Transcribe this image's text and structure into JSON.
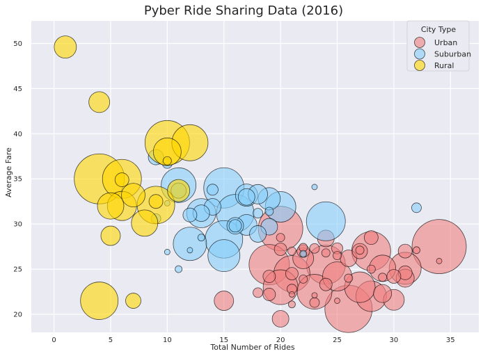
{
  "chart_data": {
    "type": "scatter",
    "title": "Pyber Ride Sharing Data (2016)",
    "xlabel": "Total Number of Rides",
    "ylabel": "Average Fare",
    "xlim": [
      -2,
      37.5
    ],
    "ylim": [
      18,
      52.5
    ],
    "xticks": [
      0,
      5,
      10,
      15,
      20,
      25,
      30,
      35
    ],
    "yticks": [
      20,
      25,
      30,
      35,
      40,
      45,
      50
    ],
    "grid": true,
    "legend": {
      "title": "City Type",
      "placement": "top-right"
    },
    "series": [
      {
        "name": "Urban",
        "color": "#F08080",
        "points": [
          [
            34,
            27.5,
            78
          ],
          [
            26,
            20.6,
            68
          ],
          [
            20,
            29.5,
            64
          ],
          [
            19,
            25.5,
            58
          ],
          [
            28,
            27,
            56
          ],
          [
            24,
            25.5,
            56
          ],
          [
            21,
            24.5,
            52
          ],
          [
            20,
            23,
            50
          ],
          [
            23,
            22.5,
            50
          ],
          [
            31,
            25.1,
            46
          ],
          [
            28,
            22,
            44
          ],
          [
            27,
            23,
            44
          ],
          [
            25,
            24.2,
            42
          ],
          [
            29,
            25.1,
            38
          ],
          [
            22,
            26.2,
            30
          ],
          [
            15,
            21.5,
            28
          ],
          [
            30,
            21.6,
            30
          ],
          [
            29,
            22.3,
            26
          ],
          [
            31,
            24,
            26
          ],
          [
            26,
            26.2,
            24
          ],
          [
            24,
            28.4,
            24
          ],
          [
            27,
            27,
            22
          ],
          [
            20,
            19.5,
            24
          ],
          [
            31,
            27,
            20
          ],
          [
            31,
            24.6,
            20
          ],
          [
            28,
            28.5,
            20
          ],
          [
            30,
            24.2,
            20
          ],
          [
            22,
            27,
            18
          ],
          [
            21,
            24.5,
            18
          ],
          [
            20,
            27.2,
            18
          ],
          [
            19,
            24.2,
            18
          ],
          [
            19,
            22.2,
            18
          ],
          [
            24,
            23.3,
            18
          ],
          [
            25,
            27.3,
            16
          ],
          [
            23,
            27.3,
            14
          ],
          [
            23,
            21.3,
            14
          ],
          [
            18,
            22.4,
            14
          ],
          [
            21,
            22.8,
            14
          ],
          [
            22,
            23.9,
            12
          ],
          [
            25,
            26.5,
            12
          ],
          [
            24,
            26.8,
            12
          ],
          [
            21,
            27,
            12
          ],
          [
            22,
            27.4,
            12
          ],
          [
            27,
            27.1,
            12
          ],
          [
            20,
            28.5,
            12
          ],
          [
            29,
            24.1,
            12
          ],
          [
            28,
            25,
            12
          ],
          [
            26,
            24,
            12
          ],
          [
            21,
            21.1,
            10
          ],
          [
            32,
            27.1,
            10
          ],
          [
            25,
            21.5,
            8
          ],
          [
            21,
            22.2,
            8
          ],
          [
            23,
            22.1,
            8
          ],
          [
            34,
            25.9,
            8
          ],
          [
            22,
            26.7,
            8
          ]
        ]
      },
      {
        "name": "Suburban",
        "color": "#87CEFA",
        "points": [
          [
            15,
            34,
            58
          ],
          [
            24,
            30.3,
            56
          ],
          [
            16,
            31.2,
            54
          ],
          [
            15,
            28.3,
            54
          ],
          [
            11,
            34.3,
            50
          ],
          [
            12,
            27.8,
            48
          ],
          [
            15,
            26.5,
            46
          ],
          [
            20,
            31.9,
            44
          ],
          [
            13,
            31.2,
            42
          ],
          [
            17,
            33.2,
            32
          ],
          [
            19,
            32.8,
            32
          ],
          [
            17,
            29.9,
            30
          ],
          [
            18,
            33.3,
            28
          ],
          [
            14,
            31.9,
            24
          ],
          [
            13,
            31.2,
            24
          ],
          [
            17,
            33,
            24
          ],
          [
            19,
            29.7,
            24
          ],
          [
            18,
            28.9,
            24
          ],
          [
            16,
            29.8,
            24
          ],
          [
            9,
            37.4,
            22
          ],
          [
            11,
            33.7,
            22
          ],
          [
            12,
            31,
            20
          ],
          [
            16,
            29.8,
            18
          ],
          [
            14,
            33.8,
            16
          ],
          [
            10,
            36.7,
            14
          ],
          [
            18,
            31.2,
            14
          ],
          [
            19,
            31.4,
            12
          ],
          [
            32,
            31.8,
            14
          ],
          [
            9,
            30.6,
            14
          ],
          [
            13,
            28.5,
            10
          ],
          [
            11,
            25,
            10
          ],
          [
            22,
            26.7,
            10
          ],
          [
            10,
            26.9,
            8
          ],
          [
            10,
            32.3,
            8
          ],
          [
            12,
            27.1,
            8
          ],
          [
            23,
            34.1,
            8
          ]
        ]
      },
      {
        "name": "Rural",
        "color": "#FFD700",
        "points": [
          [
            4,
            35,
            72
          ],
          [
            10,
            39,
            64
          ],
          [
            6,
            35,
            56
          ],
          [
            9,
            32.1,
            54
          ],
          [
            4,
            21.5,
            54
          ],
          [
            12,
            39,
            52
          ],
          [
            6,
            32,
            42
          ],
          [
            5,
            32,
            38
          ],
          [
            8,
            30.1,
            38
          ],
          [
            7,
            33.2,
            34
          ],
          [
            1,
            49.6,
            32
          ],
          [
            4,
            43.5,
            30
          ],
          [
            11,
            33.7,
            32
          ],
          [
            10,
            38,
            40
          ],
          [
            5,
            28.7,
            28
          ],
          [
            7,
            21.5,
            22
          ],
          [
            9,
            32.5,
            20
          ],
          [
            6,
            34.9,
            20
          ],
          [
            10,
            37,
            12
          ]
        ]
      }
    ]
  }
}
